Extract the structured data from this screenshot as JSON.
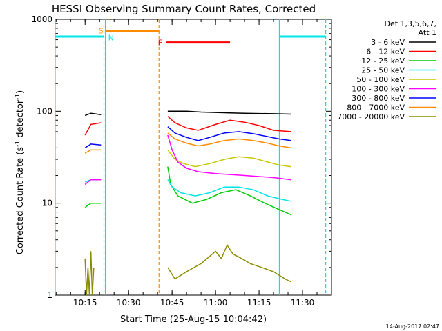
{
  "chart_data": {
    "type": "line",
    "title": "HESSI Observing Summary Count Rates, Corrected",
    "xlabel": "Start Time (25-Aug-15 10:04:42)",
    "ylabel": "Corrected Count Rate (s⁻¹ detector⁻¹)",
    "ylabel_parts": [
      "Corrected Count Rate (s",
      "-1",
      " detector",
      "-1",
      ")"
    ],
    "yscale": "log",
    "ylim": [
      1,
      1000
    ],
    "xlim": [
      "10:04:42",
      "11:40:00"
    ],
    "x_ticks": [
      "10:15",
      "10:30",
      "10:45",
      "11:00",
      "11:15",
      "11:30"
    ],
    "y_ticks": [
      "1",
      "10",
      "100",
      "1000"
    ],
    "legend_header": [
      "Det 1,3,5,6,7,",
      "Att 1"
    ],
    "legend_position": "right",
    "footer_date": "14-Aug-2017 02:47",
    "series": [
      {
        "name": "3 - 6 keV",
        "color": "#000000",
        "segments": [
          {
            "x": [
              "10:15:00",
              "10:17:00",
              "10:20:30"
            ],
            "y": [
              90,
              95,
              92
            ]
          },
          {
            "x": [
              "10:43:30",
              "10:50:00",
              "10:55:00",
              "11:00:00",
              "11:05:00",
              "11:10:00",
              "11:20:00",
              "11:26:00"
            ],
            "y": [
              100,
              100,
              98,
              97,
              96,
              95,
              94,
              93
            ]
          }
        ]
      },
      {
        "name": "6 - 12 keV",
        "color": "#ff0000",
        "segments": [
          {
            "x": [
              "10:15:00",
              "10:17:00",
              "10:20:30"
            ],
            "y": [
              55,
              72,
              75
            ]
          },
          {
            "x": [
              "10:43:30",
              "10:46:00",
              "10:50:00",
              "10:54:00",
              "11:00:00",
              "11:05:00",
              "11:10:00",
              "11:15:00",
              "11:20:00",
              "11:26:00"
            ],
            "y": [
              88,
              75,
              66,
              62,
              72,
              80,
              76,
              70,
              62,
              60
            ]
          }
        ]
      },
      {
        "name": "12 - 25 keV",
        "color": "#00cc00",
        "segments": [
          {
            "x": [
              "10:15:00",
              "10:17:00",
              "10:20:30"
            ],
            "y": [
              9,
              10,
              10
            ]
          },
          {
            "x": [
              "10:43:30",
              "10:44:30",
              "10:47:00",
              "10:52:00",
              "10:57:00",
              "11:02:00",
              "11:07:00",
              "11:12:00",
              "11:17:00",
              "11:22:00",
              "11:26:00"
            ],
            "y": [
              25,
              16,
              12,
              10,
              11,
              13,
              14,
              12,
              10,
              8.5,
              7.5
            ]
          }
        ]
      },
      {
        "name": "25 - 50 keV",
        "color": "#00e5e5",
        "segments": [
          {
            "x": [
              "10:15:00",
              "10:17:00",
              "10:20:30"
            ],
            "y": [
              17,
              18,
              18
            ]
          },
          {
            "x": [
              "10:43:30",
              "10:45:00",
              "10:48:00",
              "10:53:00",
              "10:58:00",
              "11:03:00",
              "11:08:00",
              "11:13:00",
              "11:18:00",
              "11:23:00",
              "11:26:00"
            ],
            "y": [
              18,
              15,
              13,
              12,
              13,
              15,
              15,
              14,
              12,
              11,
              10.5
            ]
          }
        ]
      },
      {
        "name": "50 - 100 keV",
        "color": "#c8c800",
        "segments": [
          {
            "x": [
              "10:43:30",
              "10:46:00",
              "10:49:00",
              "10:53:00",
              "10:58:00",
              "11:03:00",
              "11:08:00",
              "11:13:00",
              "11:18:00",
              "11:22:00",
              "11:26:00"
            ],
            "y": [
              38,
              30,
              27,
              25,
              27,
              30,
              32,
              31,
              28,
              26,
              25
            ]
          }
        ]
      },
      {
        "name": "100 - 300 keV",
        "color": "#ff00ff",
        "segments": [
          {
            "x": [
              "10:15:00",
              "10:17:00",
              "10:20:30"
            ],
            "y": [
              16,
              18,
              18
            ]
          },
          {
            "x": [
              "10:43:30",
              "10:45:00",
              "10:47:00",
              "10:50:00",
              "10:54:00",
              "11:00:00",
              "11:10:00",
              "11:20:00",
              "11:26:00"
            ],
            "y": [
              55,
              38,
              28,
              24,
              22,
              21,
              20,
              19,
              18
            ]
          }
        ]
      },
      {
        "name": "300 - 800 keV",
        "color": "#0000ff",
        "segments": [
          {
            "x": [
              "10:15:00",
              "10:17:00",
              "10:20:30"
            ],
            "y": [
              40,
              44,
              43
            ]
          },
          {
            "x": [
              "10:43:30",
              "10:46:00",
              "10:50:00",
              "10:54:00",
              "10:58:00",
              "11:03:00",
              "11:08:00",
              "11:13:00",
              "11:18:00",
              "11:22:00",
              "11:26:00"
            ],
            "y": [
              68,
              58,
              52,
              48,
              52,
              58,
              60,
              57,
              53,
              50,
              48
            ]
          }
        ]
      },
      {
        "name": "800 - 7000 keV",
        "color": "#ff8c00",
        "segments": [
          {
            "x": [
              "10:15:00",
              "10:17:00",
              "10:20:30"
            ],
            "y": [
              35,
              38,
              38
            ]
          },
          {
            "x": [
              "10:43:30",
              "10:46:00",
              "10:50:00",
              "10:54:00",
              "10:58:00",
              "11:03:00",
              "11:08:00",
              "11:13:00",
              "11:18:00",
              "11:22:00",
              "11:26:00"
            ],
            "y": [
              58,
              50,
              45,
              42,
              44,
              48,
              50,
              48,
              45,
              42,
              40
            ]
          }
        ]
      },
      {
        "name": "7000 - 20000 keV",
        "color": "#8b8b00",
        "segments": [
          {
            "x": [
              "10:15:00",
              "10:15:30",
              "10:16:00",
              "10:16:30",
              "10:17:00",
              "10:17:30",
              "10:18:00"
            ],
            "y": [
              2.5,
              1,
              2,
              1,
              3,
              1,
              2
            ]
          },
          {
            "x": [
              "10:43:30",
              "10:46:00",
              "10:50:00",
              "10:55:00",
              "11:00:00",
              "11:02:00",
              "11:04:00",
              "11:06:00",
              "11:08:00",
              "11:10:00",
              "11:12:00",
              "11:16:00",
              "11:20:00",
              "11:24:00",
              "11:26:00"
            ],
            "y": [
              2,
              1.5,
              1.8,
              2.2,
              3,
              2.5,
              3.5,
              2.8,
              2.6,
              2.4,
              2.2,
              2,
              1.8,
              1.5,
              1.4
            ]
          }
        ]
      }
    ],
    "attenuator_level": 650,
    "attenuator_segments": [
      [
        "10:04:42",
        "10:21:30"
      ],
      [
        "11:22:00",
        "11:38:00"
      ]
    ],
    "saa_bar": {
      "label": "S",
      "x": [
        "10:22:00",
        "10:40:30"
      ],
      "y": 750,
      "color": "#ff8c00"
    },
    "flare_bar": {
      "label": "F",
      "x": [
        "10:43:00",
        "11:05:00"
      ],
      "y": 560,
      "color": "#ff0000"
    },
    "night_label": "N",
    "vlines": [
      {
        "x": "10:04:42",
        "color": "#00e5e5",
        "style": "solid"
      },
      {
        "x": "10:21:30",
        "color": "#00e5e5",
        "style": "dashed"
      },
      {
        "x": "10:22:00",
        "color": "#ff8c00",
        "style": "solid"
      },
      {
        "x": "10:40:30",
        "color": "#ff8c00",
        "style": "dashed"
      },
      {
        "x": "11:22:00",
        "color": "#00e5e5",
        "style": "solid"
      },
      {
        "x": "11:38:00",
        "color": "#00e5e5",
        "style": "dashed"
      }
    ]
  }
}
